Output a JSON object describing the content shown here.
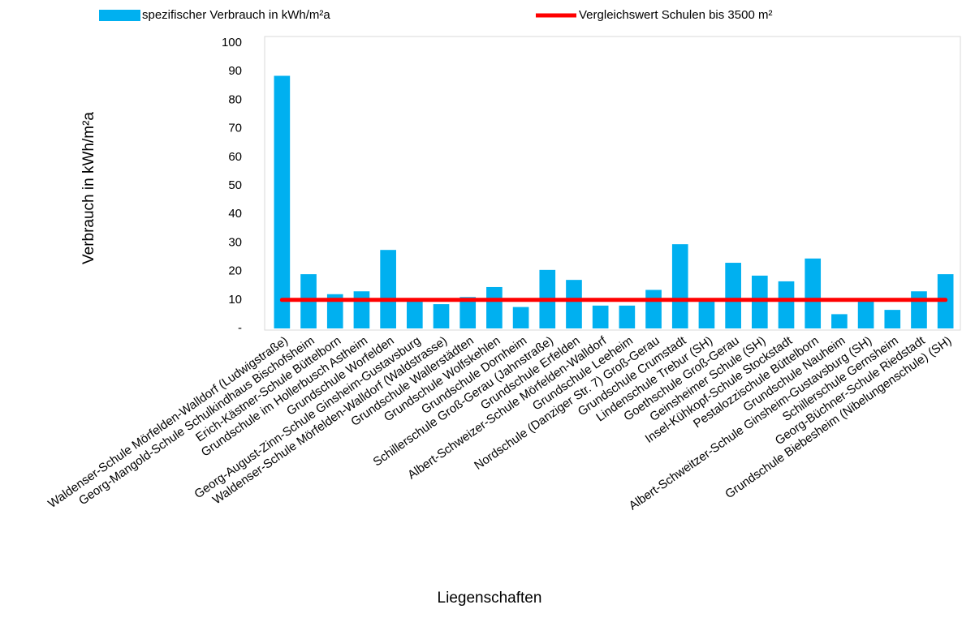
{
  "chart_data": {
    "type": "bar",
    "x_label": "Liegenschaften",
    "y_label": "Verbrauch in kWh/m²a",
    "categories": [
      "Waldenser-Schule Mörfelden-Walldorf (Ludwigstraße)",
      "Georg-Mangold-Schule Schulkindhaus Bischofsheim",
      "Erich-Kästner-Schule Büttelborn",
      "Grundschule im Hollerbusch Astheim",
      "Grundschule Worfelden",
      "Georg-August-Zinn-Schule Ginsheim-Gustavsburg",
      "Waldenser-Schule Mörfelden-Walldorf (Waldstrasse)",
      "Grundschule Wallerstädten",
      "Grundschule Wolfskehlen",
      "Grundschule Dornheim",
      "Schillerschule Groß-Gerau (Jahnstraße)",
      "Grundschule Erfelden",
      "Albert-Schweizer-Schule Mörfelden-Walldorf",
      "Grundschule Leeheim",
      "Nordschule (Danziger Str. 7) Groß-Gerau",
      "Grundschule Crumstadt",
      "Lindenschule Trebur (SH)",
      "Goethschule Groß-Gerau",
      "Geinsheimer Schule (SH)",
      "Insel-Kühkopf-Schule Stockstadt",
      "Pestalozzischule Büttelborn",
      "Grundschule Nauheim",
      "Albert-Schweitzer-Schule Ginsheim-Gustavsburg (SH)",
      "Schillerschule Gernsheim",
      "Georg-Büchner-Schule Riedstadt",
      "Grundschule Biebesheim (Nibelungenschule) (SH)"
    ],
    "series": [
      {
        "name": "spezifischer Verbrauch in kWh/m²a",
        "type": "bar",
        "color": "#00b0f0",
        "values": [
          88.5,
          19,
          12,
          13,
          27.5,
          10,
          8.5,
          11,
          14.5,
          7.5,
          20.5,
          17,
          8,
          8,
          13.5,
          29.5,
          9.5,
          23,
          18.5,
          16.5,
          24.5,
          5,
          10,
          6.5,
          13,
          19
        ]
      },
      {
        "name": "Vergleichswert Schulen bis 3500 m²",
        "type": "line",
        "color": "#ff0000",
        "values": [
          10,
          10,
          10,
          10,
          10,
          10,
          10,
          10,
          10,
          10,
          10,
          10,
          10,
          10,
          10,
          10,
          10,
          10,
          10,
          10,
          10,
          10,
          10,
          10,
          10,
          10
        ]
      }
    ],
    "ylim": [
      0,
      100
    ],
    "yticks": [
      {
        "value": 0,
        "label": "-"
      },
      10,
      20,
      30,
      40,
      50,
      60,
      70,
      80,
      90,
      100
    ],
    "grid": false,
    "legend": "top"
  }
}
